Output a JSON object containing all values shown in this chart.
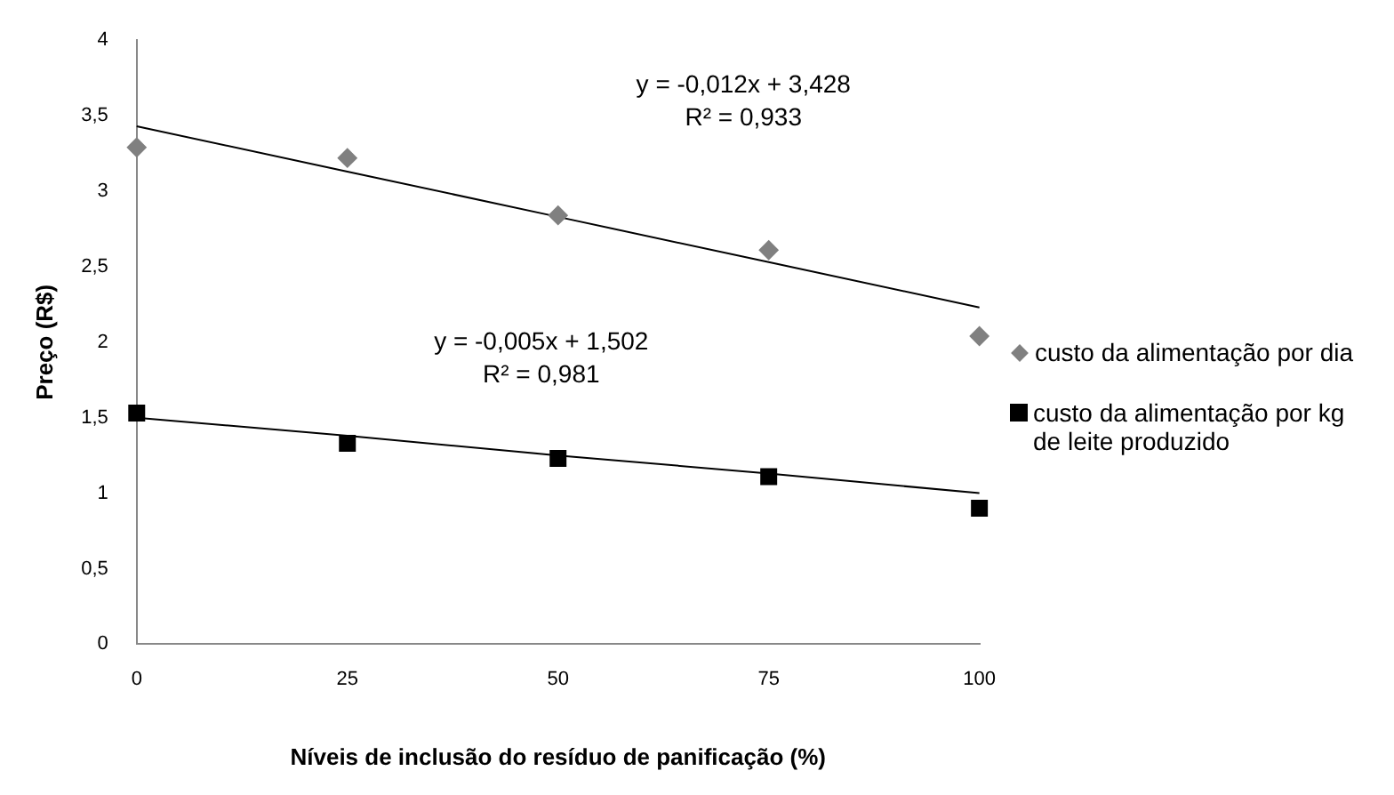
{
  "chart_data": {
    "type": "scatter",
    "xlabel": "Níveis de inclusão do resíduo de panificação (%)",
    "ylabel": "Preço (R$)",
    "x": [
      0,
      25,
      50,
      75,
      100
    ],
    "series": [
      {
        "name": "custo da alimentação por dia",
        "color": "#808080",
        "marker": "diamond",
        "values": [
          3.29,
          3.22,
          2.84,
          2.61,
          2.04
        ]
      },
      {
        "name": "custo da alimentação por kg de leite produzido",
        "color": "#000000",
        "marker": "square",
        "values": [
          1.53,
          1.33,
          1.23,
          1.11,
          0.9
        ]
      },
      {
        "type": "line",
        "color": "#000000",
        "values": [
          3.43,
          3.13,
          2.83,
          2.53,
          2.23
        ]
      },
      {
        "type": "line",
        "color": "#000000",
        "values": [
          1.5,
          1.38,
          1.25,
          1.13,
          1.0
        ]
      }
    ],
    "xlim": [
      0,
      100
    ],
    "xticks": [
      0,
      25,
      50,
      75,
      100
    ],
    "ylim": [
      0,
      4
    ],
    "yticks": [
      0,
      {
        "value": 0.5,
        "label": "0,5"
      },
      1,
      {
        "value": 1.5,
        "label": "1,5"
      },
      2,
      {
        "value": 2.5,
        "label": "2,5"
      },
      3,
      {
        "value": 3.5,
        "label": "3,5"
      },
      4
    ],
    "annotations": [
      "y = -0,012x + 3,428",
      "R² = 0,933",
      "y = -0,005x + 1,502",
      "R² = 0,981"
    ],
    "grid": false,
    "legend": "right"
  }
}
